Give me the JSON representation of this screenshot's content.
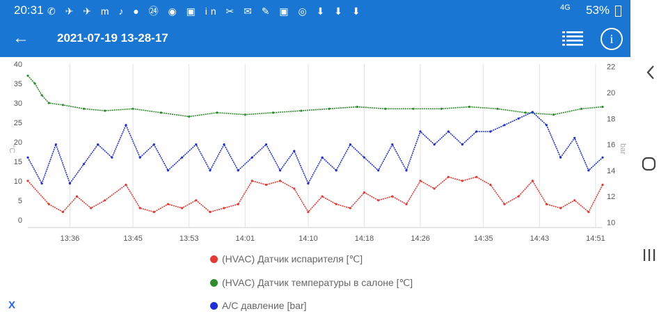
{
  "status_bar": {
    "time": "20:31",
    "icons_text": "✆ ✈ ✈ m ♪ ● ㉔ ◉ ▣ in ✂ ✉ ✎ ▣ ◎ ⬇ ⬇ ⬇",
    "signal": "4G",
    "battery": "53%"
  },
  "app_bar": {
    "title": "2021-07-19 13-28-17",
    "back_icon": "←",
    "info_icon": "i"
  },
  "nav_bar": {
    "back": "‹",
    "home": "○",
    "recents": "|||"
  },
  "close_label": "X",
  "colors": {
    "red": "#e53935",
    "green": "#2e8b2e",
    "blue": "#1f2ddb",
    "accent": "#1976d2"
  },
  "chart_data": {
    "type": "line",
    "x_ticks": [
      "13:36",
      "13:45",
      "13:53",
      "14:01",
      "14:10",
      "14:18",
      "14:26",
      "14:35",
      "14:43",
      "14:51"
    ],
    "x_range": [
      "13:30",
      "14:52"
    ],
    "y_left": {
      "label": "°C",
      "ticks": [
        "40",
        "35",
        "30",
        "25",
        "20",
        "15",
        "10",
        "5",
        "0"
      ],
      "range": [
        -2,
        40
      ]
    },
    "y_right": {
      "label": "bar",
      "ticks": [
        "22",
        "20",
        "18",
        "16",
        "14",
        "12",
        "10"
      ],
      "range": [
        9.6,
        22.2
      ]
    },
    "grid": "vertical",
    "series": [
      {
        "name": "(HVAC) Датчик испарителя [℃]",
        "color": "#e53935",
        "axis": "left",
        "x": [
          "13:30",
          "13:33",
          "13:35",
          "13:37",
          "13:39",
          "13:41",
          "13:44",
          "13:46",
          "13:48",
          "13:50",
          "13:52",
          "13:54",
          "13:56",
          "13:58",
          "14:00",
          "14:02",
          "14:04",
          "14:06",
          "14:08",
          "14:10",
          "14:12",
          "14:14",
          "14:16",
          "14:18",
          "14:20",
          "14:22",
          "14:24",
          "14:26",
          "14:28",
          "14:30",
          "14:32",
          "14:34",
          "14:36",
          "14:38",
          "14:40",
          "14:42",
          "14:44",
          "14:46",
          "14:48",
          "14:50",
          "14:52"
        ],
        "values": [
          10,
          4,
          2,
          6,
          3,
          5,
          9,
          3,
          2,
          4,
          3,
          5,
          2,
          3,
          4,
          10,
          9,
          10,
          8,
          2,
          6,
          4,
          3,
          7,
          5,
          6,
          4,
          10,
          8,
          11,
          10,
          11,
          9,
          4,
          6,
          10,
          4,
          3,
          5,
          2,
          9
        ]
      },
      {
        "name": "(HVAC) Датчик температуры в салоне [℃]",
        "color": "#2e8b2e",
        "axis": "left",
        "x": [
          "13:30",
          "13:31",
          "13:32",
          "13:33",
          "13:35",
          "13:38",
          "13:41",
          "13:45",
          "13:49",
          "13:53",
          "13:57",
          "14:01",
          "14:05",
          "14:09",
          "14:13",
          "14:17",
          "14:21",
          "14:25",
          "14:29",
          "14:33",
          "14:37",
          "14:41",
          "14:45",
          "14:49",
          "14:52"
        ],
        "values": [
          37,
          35,
          32,
          30,
          29.5,
          28.5,
          28,
          28.5,
          27.5,
          26.5,
          27.5,
          27,
          27.5,
          28,
          28.5,
          29,
          28.5,
          28.5,
          28.5,
          29,
          28.5,
          27.5,
          27,
          28.5,
          29
        ]
      },
      {
        "name": "A/C давление [bar]",
        "color": "#1f2ddb",
        "axis": "right",
        "x": [
          "13:30",
          "13:32",
          "13:34",
          "13:36",
          "13:38",
          "13:40",
          "13:42",
          "13:44",
          "13:46",
          "13:48",
          "13:50",
          "13:52",
          "13:54",
          "13:56",
          "13:58",
          "14:00",
          "14:02",
          "14:04",
          "14:06",
          "14:08",
          "14:10",
          "14:12",
          "14:14",
          "14:16",
          "14:18",
          "14:20",
          "14:22",
          "14:24",
          "14:26",
          "14:28",
          "14:30",
          "14:32",
          "14:34",
          "14:36",
          "14:38",
          "14:40",
          "14:42",
          "14:44",
          "14:46",
          "14:48",
          "14:50",
          "14:52"
        ],
        "values": [
          15,
          13,
          16,
          13,
          14.5,
          16,
          15,
          17.5,
          15,
          16,
          14,
          15,
          16,
          14,
          16,
          14,
          15,
          16,
          14,
          15.5,
          13,
          15,
          14,
          16,
          15,
          14,
          16,
          14,
          17,
          16,
          17,
          16,
          17,
          17,
          17.5,
          18,
          18.5,
          17.5,
          15,
          16.5,
          14,
          15
        ]
      }
    ]
  }
}
